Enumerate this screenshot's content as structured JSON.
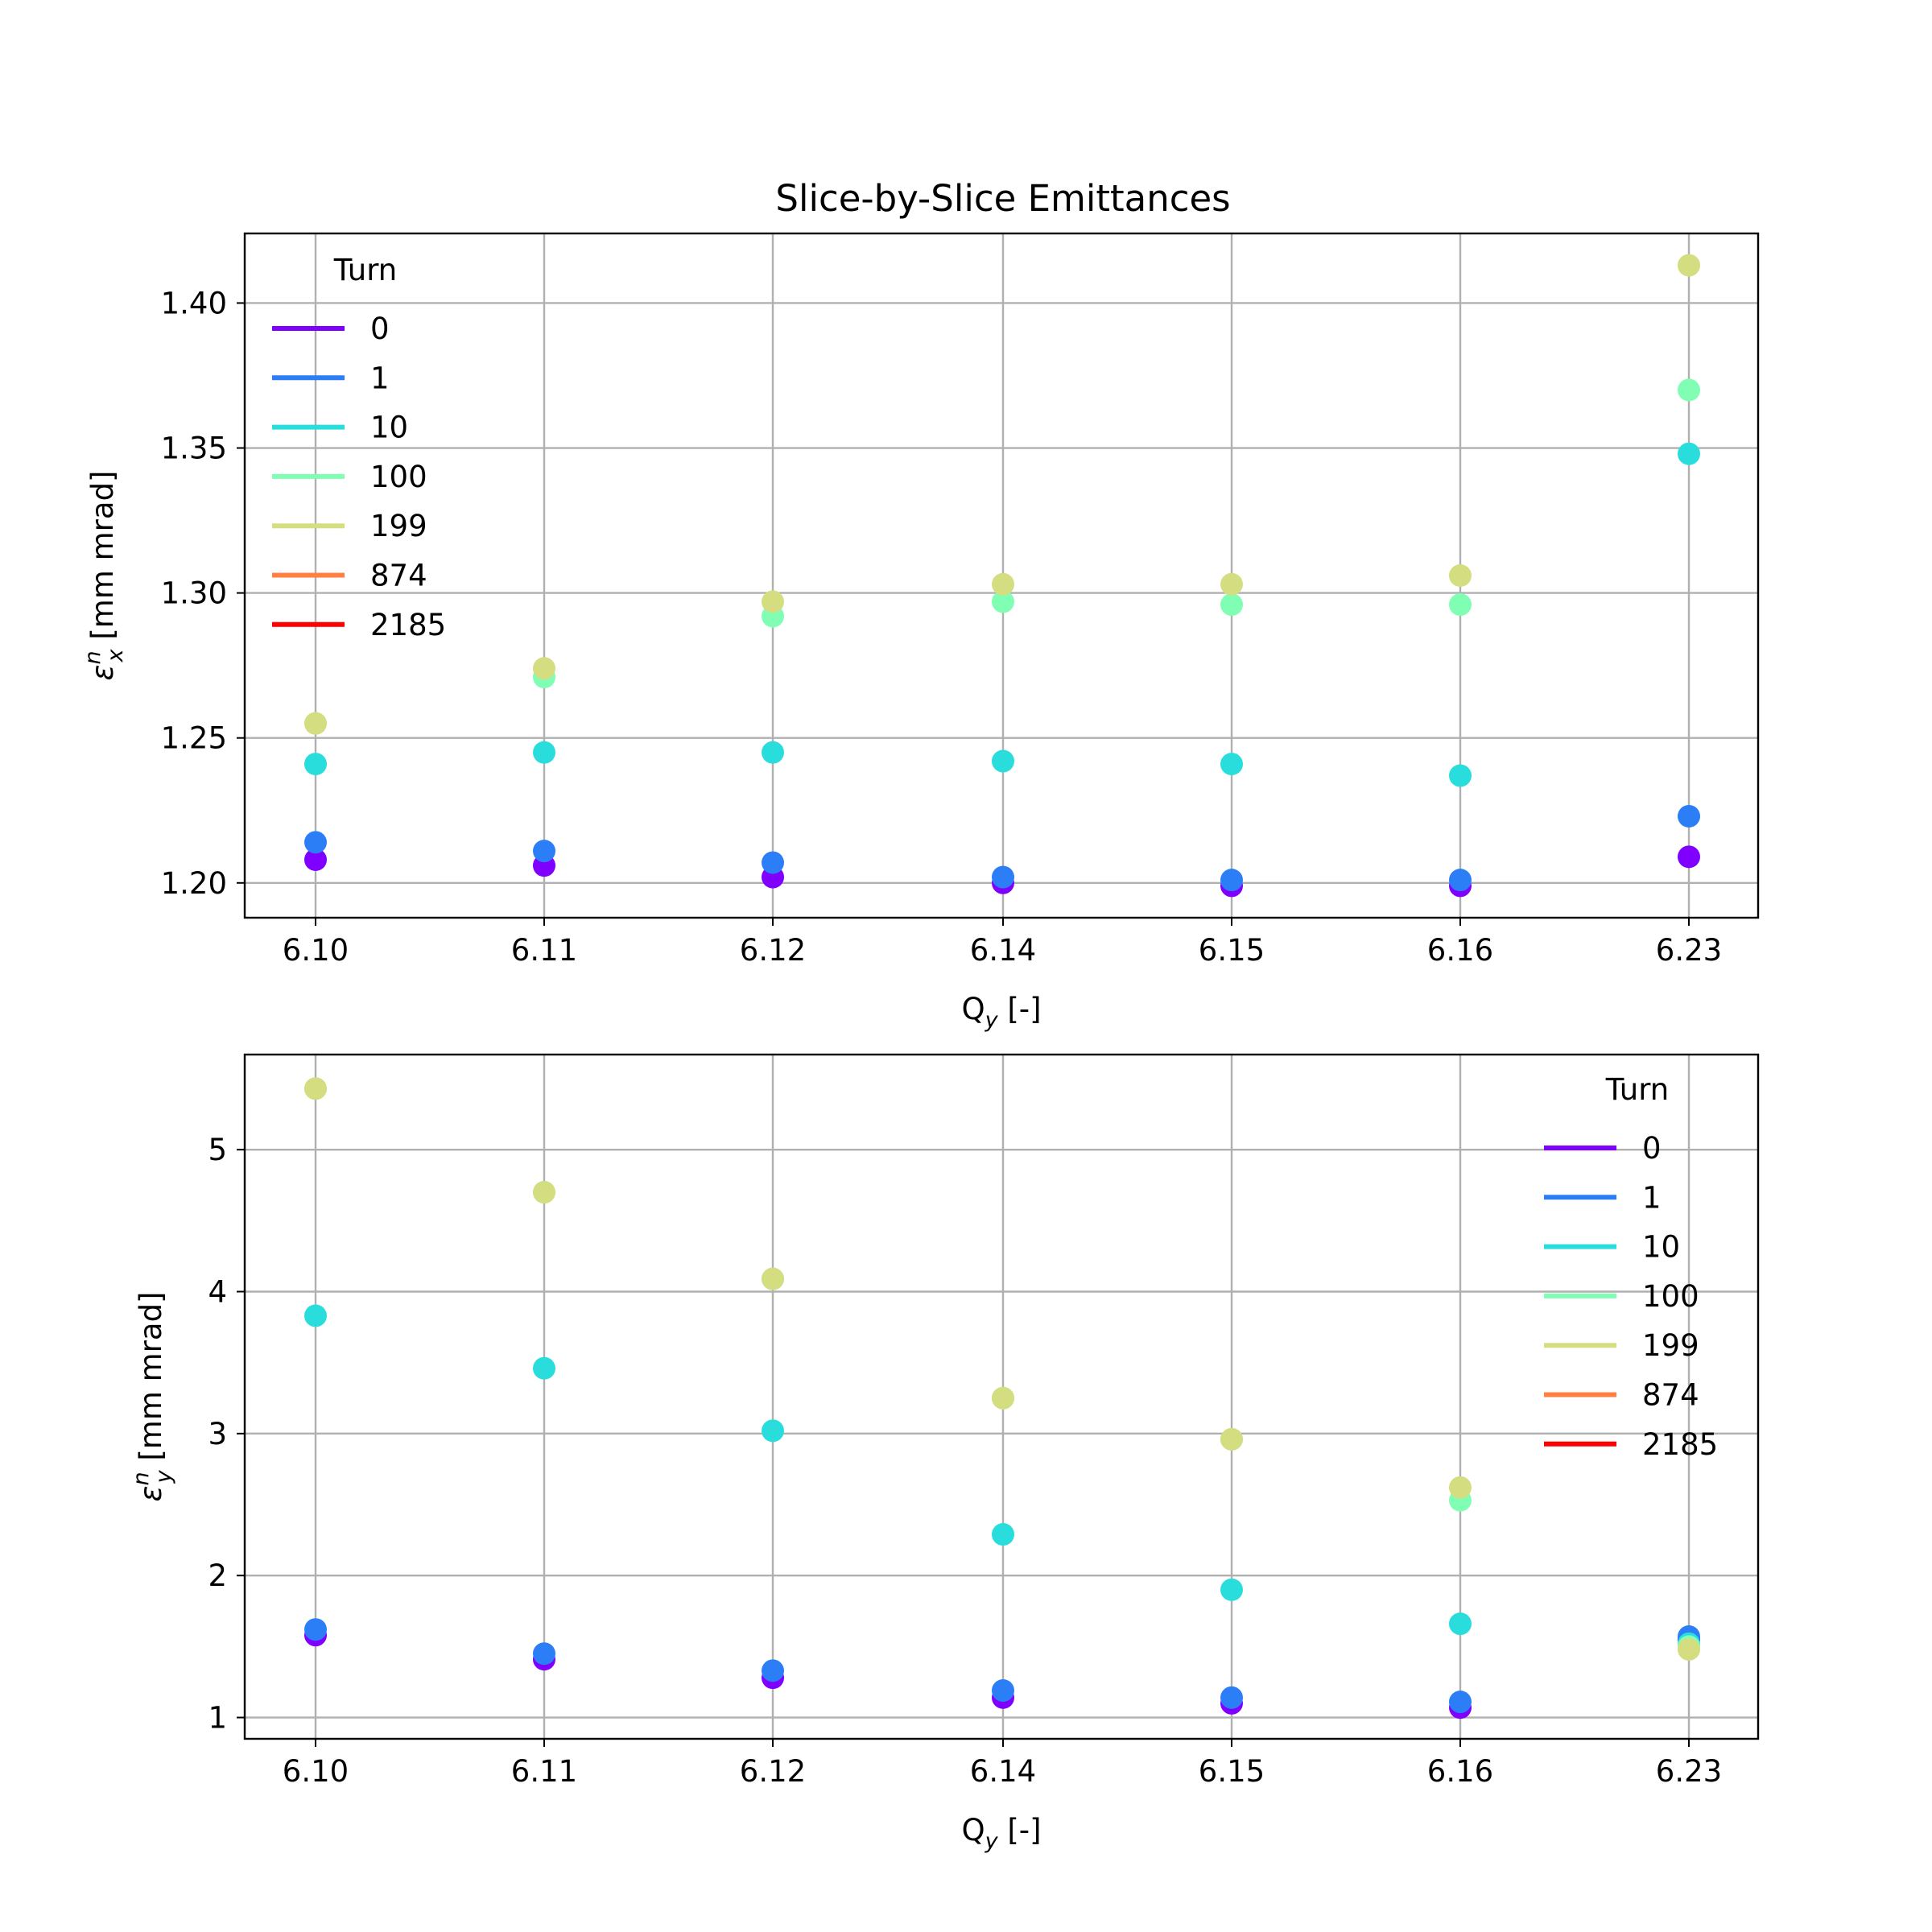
{
  "figure": {
    "title": "Slice-by-Slice Emittances"
  },
  "chart_data": [
    {
      "type": "scatter",
      "title": "Slice-by-Slice Emittances",
      "xlabel": "Q_y [-]",
      "xlabel_main": "Q",
      "xlabel_sub": "y",
      "xlabel_rest": " [-]",
      "ylabel": "ε_x^n [mm mrad]",
      "ylabel_main": "ε",
      "ylabel_sup": "n",
      "ylabel_sub": "x",
      "ylabel_rest": " [mm mrad]",
      "categories": [
        "6.10",
        "6.11",
        "6.12",
        "6.14",
        "6.15",
        "6.16",
        "6.23"
      ],
      "ylim": [
        1.188,
        1.424
      ],
      "yticks": [
        "1.20",
        "1.25",
        "1.30",
        "1.35",
        "1.40"
      ],
      "grid": true,
      "legend_title": "Turn",
      "legend_position": "upper left",
      "series": [
        {
          "name": "0",
          "color": "#8000ff",
          "values": [
            1.208,
            1.206,
            1.202,
            1.2,
            1.199,
            1.199,
            1.209
          ]
        },
        {
          "name": "1",
          "color": "#2c7ef7",
          "values": [
            1.214,
            1.211,
            1.207,
            1.202,
            1.201,
            1.201,
            1.223
          ]
        },
        {
          "name": "10",
          "color": "#2adddd",
          "values": [
            1.241,
            1.245,
            1.245,
            1.242,
            1.241,
            1.237,
            1.348
          ]
        },
        {
          "name": "100",
          "color": "#80ffb4",
          "values": [
            1.255,
            1.271,
            1.292,
            1.297,
            1.296,
            1.296,
            1.37
          ]
        },
        {
          "name": "199",
          "color": "#d4dd80",
          "values": [
            1.255,
            1.274,
            1.297,
            1.303,
            1.303,
            1.306,
            1.413
          ]
        },
        {
          "name": "874",
          "color": "#ff8040",
          "values": []
        },
        {
          "name": "2185",
          "color": "#ff0000",
          "values": []
        }
      ]
    },
    {
      "type": "scatter",
      "title": "",
      "xlabel": "Q_y [-]",
      "xlabel_main": "Q",
      "xlabel_sub": "y",
      "xlabel_rest": " [-]",
      "ylabel": "ε_y^n [mm mrad]",
      "ylabel_main": "ε",
      "ylabel_sup": "n",
      "ylabel_sub": "y",
      "ylabel_rest": " [mm mrad]",
      "categories": [
        "6.10",
        "6.11",
        "6.12",
        "6.14",
        "6.15",
        "6.16",
        "6.23"
      ],
      "ylim": [
        0.85,
        5.67
      ],
      "yticks": [
        "1",
        "2",
        "3",
        "4",
        "5"
      ],
      "grid": true,
      "legend_title": "Turn",
      "legend_position": "upper right",
      "series": [
        {
          "name": "0",
          "color": "#8000ff",
          "values": [
            1.58,
            1.41,
            1.28,
            1.14,
            1.1,
            1.07,
            1.55
          ]
        },
        {
          "name": "1",
          "color": "#2c7ef7",
          "values": [
            1.62,
            1.45,
            1.33,
            1.19,
            1.14,
            1.11,
            1.57
          ]
        },
        {
          "name": "10",
          "color": "#2adddd",
          "values": [
            3.83,
            3.46,
            3.02,
            2.29,
            1.9,
            1.66,
            1.52
          ]
        },
        {
          "name": "100",
          "color": "#80ffb4",
          "values": [
            5.43,
            4.7,
            4.09,
            3.25,
            2.96,
            2.53,
            1.5
          ]
        },
        {
          "name": "199",
          "color": "#d4dd80",
          "values": [
            5.43,
            4.7,
            4.09,
            3.25,
            2.96,
            2.62,
            1.48
          ]
        },
        {
          "name": "874",
          "color": "#ff8040",
          "values": []
        },
        {
          "name": "2185",
          "color": "#ff0000",
          "values": []
        }
      ]
    }
  ]
}
